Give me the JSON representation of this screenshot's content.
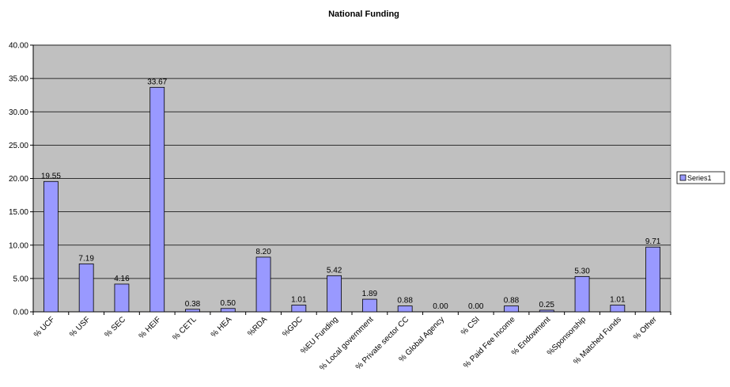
{
  "chart_data": {
    "type": "bar",
    "title": "National Funding",
    "categories": [
      "% UCF",
      "% USF",
      "% SEC",
      "% HEIF",
      "% CETL",
      "% HEA",
      "%RDA",
      "%GDC",
      "%EU Funding",
      "% Local government",
      "% Private sector CC",
      "% Global Agency",
      "% CSI",
      "% Paid Fee Income",
      "% Endowment",
      "%Sponsorship",
      "% Matched Funds",
      "% Other"
    ],
    "series": [
      {
        "name": "Series1",
        "values": [
          19.55,
          7.19,
          4.16,
          33.67,
          0.38,
          0.5,
          8.2,
          1.01,
          5.42,
          1.89,
          0.88,
          0.0,
          0.0,
          0.88,
          0.25,
          5.3,
          1.01,
          9.71
        ],
        "labels": [
          "19.55",
          "7.19",
          "4.16",
          "33.67",
          "0.38",
          "0.50",
          "8.20",
          "1.01",
          "5.42",
          "1.89",
          "0.88",
          "0.00",
          "0.00",
          "0.88",
          "0.25",
          "5.30",
          "1.01",
          "9.71"
        ]
      }
    ],
    "ylim": [
      0,
      40
    ],
    "yticks": [
      "0.00",
      "5.00",
      "10.00",
      "15.00",
      "20.00",
      "25.00",
      "30.00",
      "35.00",
      "40.00"
    ],
    "xlabel": "",
    "ylabel": "",
    "grid": true,
    "legend_position": "right",
    "colors": {
      "plot_bg": "#c0c0c0",
      "bar_fill": "#9999ff",
      "bar_stroke": "#000000",
      "gridline": "#000000"
    }
  }
}
